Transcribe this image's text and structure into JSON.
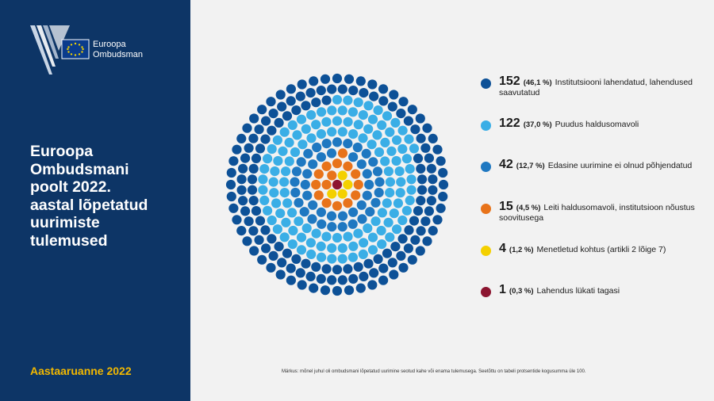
{
  "logo": {
    "line1": "Euroopa",
    "line2": "Ombudsman"
  },
  "panel": {
    "title": "Euroopa\nOmbudsmani\npoolt 2022.\naastal lõpetatud\nuurimiste\ntulemused",
    "report_label": "Aastaaruanne 2022"
  },
  "note": "Märkus: mõnel juhul oli ombudsmani lõpetatud uurimine seotud kahe või enama tulemusega. Seetõttu on tabeli protsentide kogusumma üle 100.",
  "colors": {
    "panel_bg": "#0d3566",
    "accent_yellow": "#f2b800",
    "dark_blue": "#0d5197",
    "light_blue": "#3aaee6",
    "mid_blue": "#1f78c1",
    "orange": "#e8731a",
    "yellow": "#f4d000",
    "dark_red": "#8c1530"
  },
  "chart_data": {
    "type": "dot-circle",
    "series": [
      {
        "count": "152",
        "percent": "(46,1 %)",
        "label": "Institutsiooni lahendatud, lahendused saavutatud",
        "color": "#0d5197",
        "value": 152
      },
      {
        "count": "122",
        "percent": "(37,0 %)",
        "label": "Puudus haldusomavoli",
        "color": "#3aaee6",
        "value": 122
      },
      {
        "count": "42",
        "percent": "(12,7 %)",
        "label": "Edasine uurimine ei olnud põhjendatud",
        "color": "#1f78c1",
        "value": 42
      },
      {
        "count": "15",
        "percent": "(4,5 %)",
        "label": "Leiti haldusomavoli, institutsioon nõustus soovitusega",
        "color": "#e8731a",
        "value": 15
      },
      {
        "count": "4",
        "percent": "(1,2 %)",
        "label": "Menetletud kohtus (artikli 2 lõige 7)",
        "color": "#f4d000",
        "value": 4
      },
      {
        "count": "1",
        "percent": "(0,3 %)",
        "label": "Lahendus lükati tagasi",
        "color": "#8c1530",
        "value": 1
      }
    ]
  }
}
